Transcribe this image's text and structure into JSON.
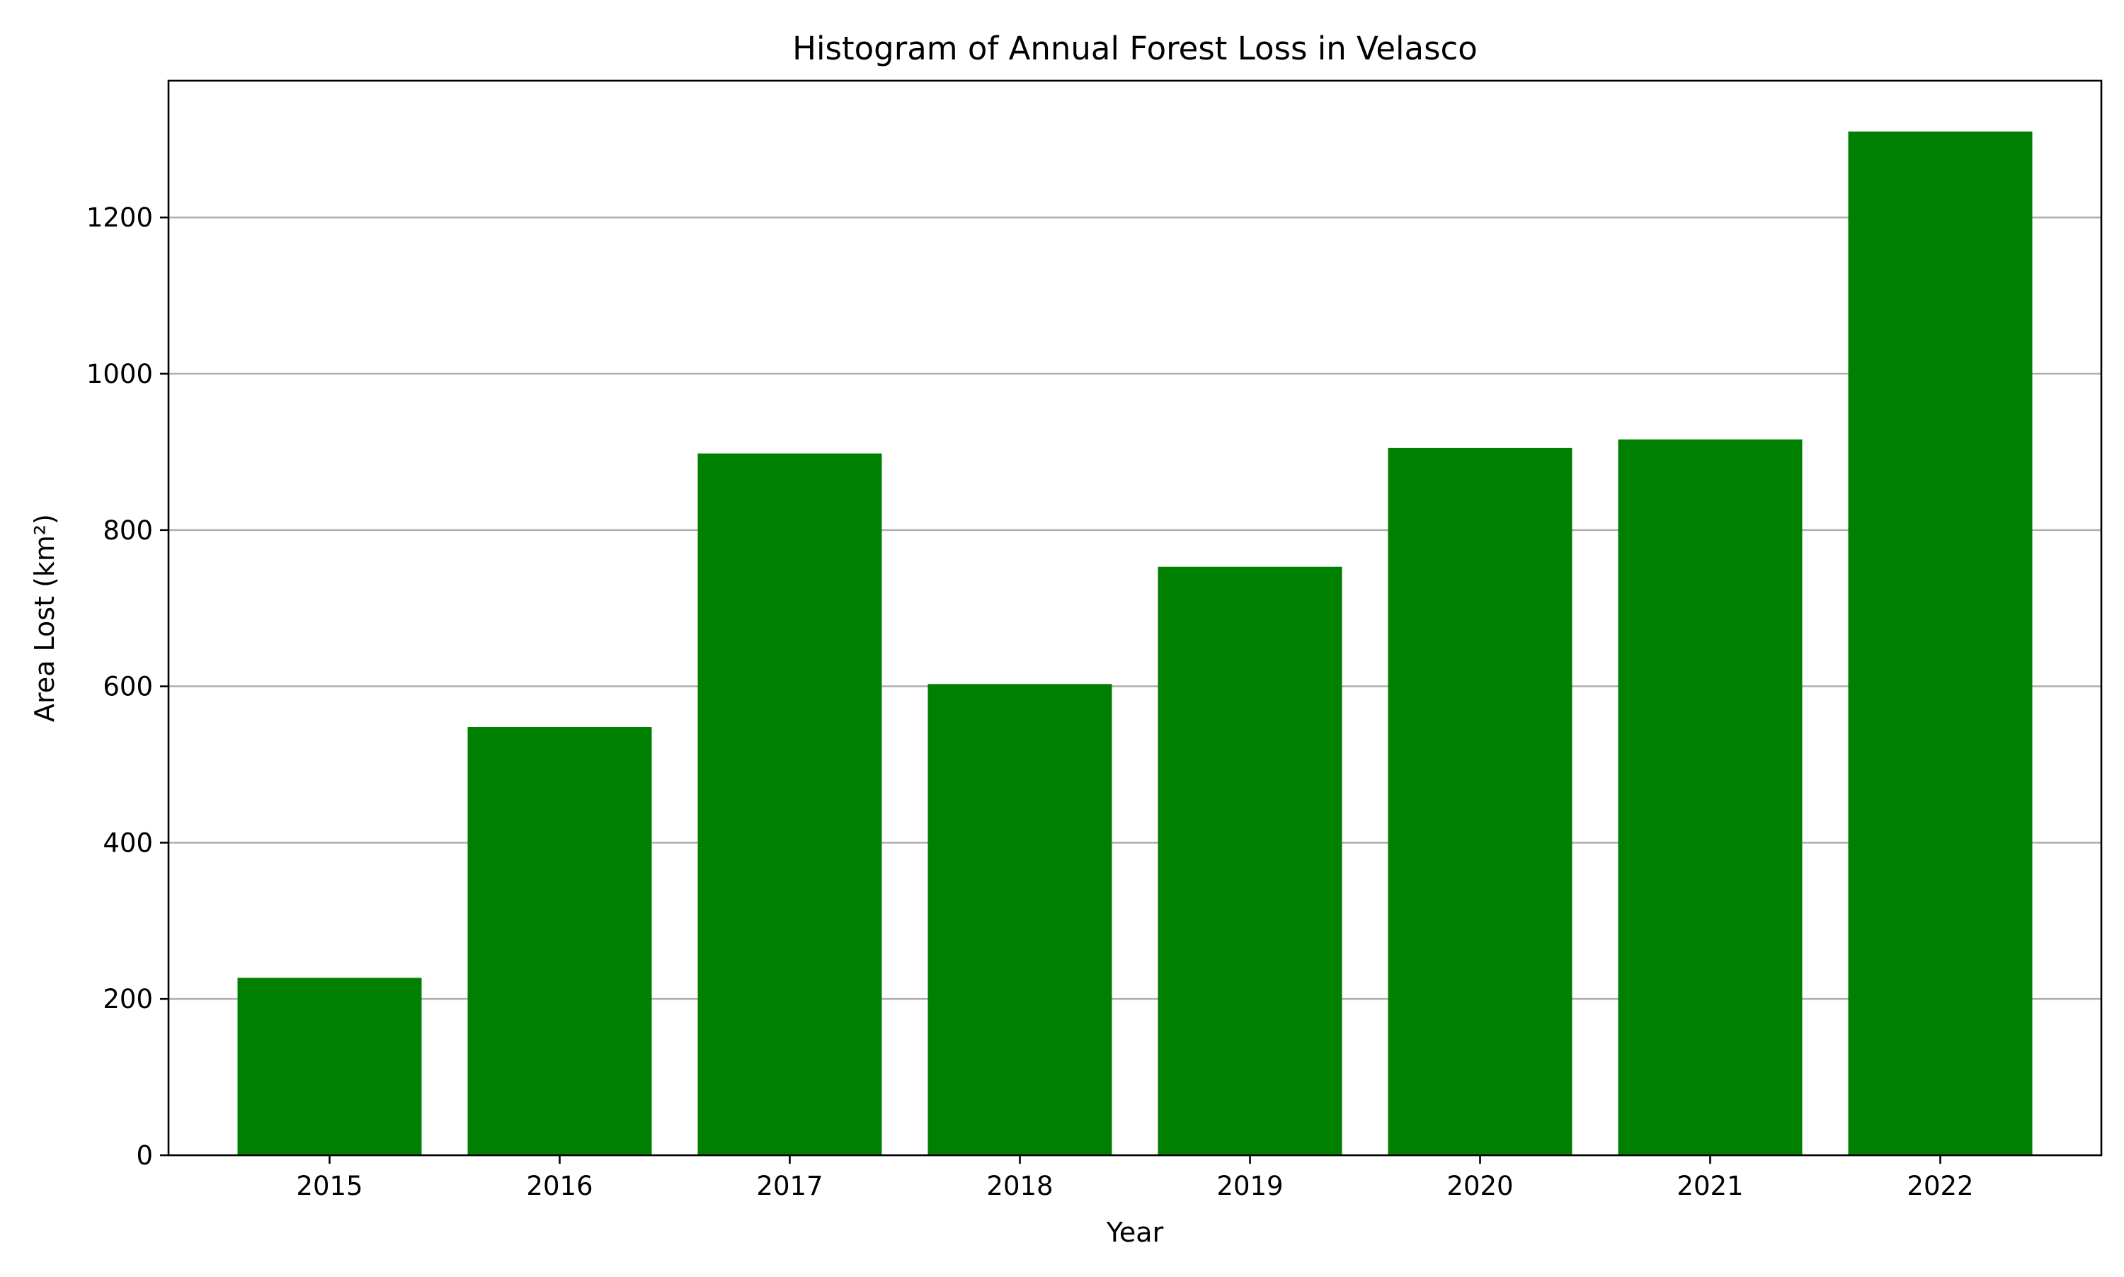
{
  "chart_data": {
    "type": "bar",
    "title": "Histogram of Annual Forest Loss in Velasco",
    "xlabel": "Year",
    "ylabel": "Area Lost (km²)",
    "categories": [
      "2015",
      "2016",
      "2017",
      "2018",
      "2019",
      "2020",
      "2021",
      "2022"
    ],
    "values": [
      227,
      548,
      898,
      603,
      753,
      905,
      916,
      1310
    ],
    "ylim": [
      0,
      1375
    ],
    "yticks": [
      0,
      200,
      400,
      600,
      800,
      1000,
      1200
    ],
    "grid": "y-axis",
    "bar_color": "#008000"
  }
}
